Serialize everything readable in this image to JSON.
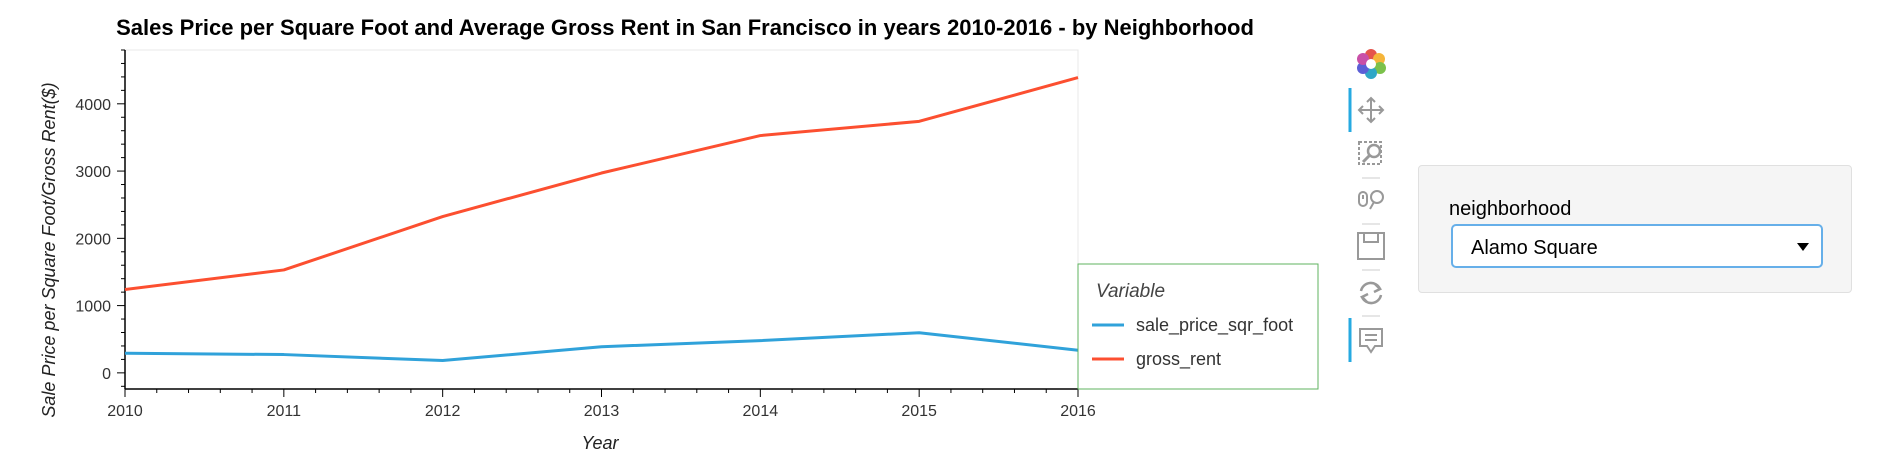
{
  "chart_data": {
    "type": "line",
    "title": "Sales Price per Square Foot and Average Gross Rent in San Francisco in years 2010-2016 - by Neighborhood",
    "xlabel": "Year",
    "ylabel": "Sale Price per Square Foot/Gross Rent($)",
    "x": [
      2010,
      2011,
      2012,
      2013,
      2014,
      2015,
      2016
    ],
    "x_ticks": [
      "2010",
      "2011",
      "2012",
      "2013",
      "2014",
      "2015",
      "2016"
    ],
    "y_ticks": [
      "0",
      "1000",
      "2000",
      "3000",
      "4000"
    ],
    "xlim": [
      2010,
      2016
    ],
    "ylim": [
      -240,
      4800
    ],
    "legend": {
      "title": "Variable",
      "placement": "right"
    },
    "series": [
      {
        "name": "sale_price_sqr_foot",
        "color": "#30a2da",
        "values": [
          292,
          272,
          183,
          388,
          479,
          597,
          336
        ]
      },
      {
        "name": "gross_rent",
        "color": "#fc4f30",
        "values": [
          1239,
          1530,
          2324,
          2971,
          3528,
          3739,
          4390
        ]
      }
    ]
  },
  "toolbar": {
    "icons": [
      "bokeh-logo-icon",
      "pan-icon",
      "box-zoom-icon",
      "wheel-zoom-icon",
      "save-icon",
      "reset-icon",
      "hover-icon"
    ]
  },
  "widget": {
    "label": "neighborhood",
    "selected": "Alamo Square"
  }
}
